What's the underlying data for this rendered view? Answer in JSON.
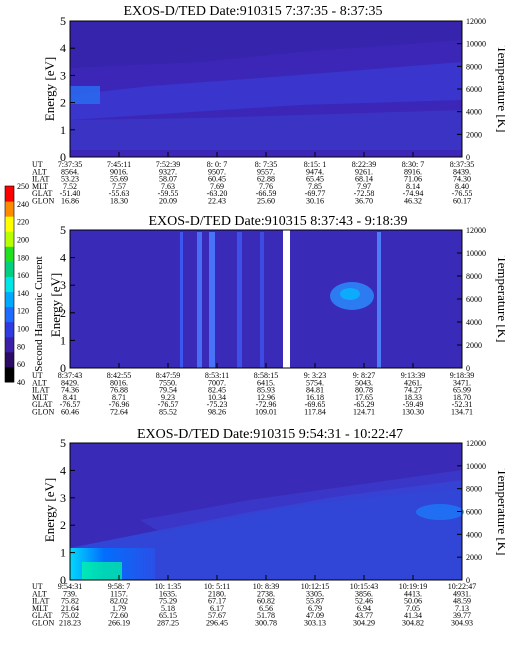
{
  "panels": [
    {
      "title": "EXOS-D/TED   Date:910315  7:37:35 - 8:37:35",
      "ylabel_left": "Energy [eV]",
      "ylabel_right": "Temperature [K]",
      "left_ticks": [
        "0",
        "1",
        "2",
        "3",
        "4",
        "5"
      ],
      "right_ticks": [
        "0",
        "2000",
        "4000",
        "6000",
        "8000",
        "10000",
        "12000"
      ],
      "row_labels": [
        "UT",
        "ALT",
        "ILAT",
        "MLT",
        "GLAT",
        "GLON"
      ],
      "columns": [
        [
          "7:37:35",
          "8564.",
          "53.23",
          "7.52",
          "-51.40",
          "16.86"
        ],
        [
          "7:45:11",
          "9016.",
          "55.69",
          "7.57",
          "-55.63",
          "18.30"
        ],
        [
          "7:52:39",
          "9327.",
          "58.07",
          "7.63",
          "-59.55",
          "20.09"
        ],
        [
          "8: 0: 7",
          "9507.",
          "60.45",
          "7.69",
          "-63.20",
          "22.43"
        ],
        [
          "8: 7:35",
          "9557.",
          "62.88",
          "7.76",
          "-66.59",
          "25.60"
        ],
        [
          "8:15: 1",
          "9474.",
          "65.45",
          "7.85",
          "-69.77",
          "30.16"
        ],
        [
          "8:22:39",
          "9261.",
          "68.14",
          "7.97",
          "-72.58",
          "36.70"
        ],
        [
          "8:30: 7",
          "8916.",
          "71.06",
          "8.14",
          "-74.94",
          "46.32"
        ],
        [
          "8:37:35",
          "8439.",
          "74.30",
          "8.40",
          "-76.55",
          "60.17"
        ]
      ]
    },
    {
      "title": "EXOS-D/TED   Date:910315  8:37:43 - 9:18:39",
      "ylabel_left": "Energy [eV]",
      "ylabel_right": "Temperature [K]",
      "left_ticks": [
        "0",
        "1",
        "2",
        "3",
        "4",
        "5"
      ],
      "right_ticks": [
        "0",
        "2000",
        "4000",
        "6000",
        "8000",
        "10000",
        "12000"
      ],
      "row_labels": [
        "UT",
        "ALT",
        "ILAT",
        "MLT",
        "GLAT",
        "GLON"
      ],
      "columns": [
        [
          "8:37:43",
          "8429.",
          "74.36",
          "8.41",
          "-76.57",
          "60.46"
        ],
        [
          "8:42:55",
          "8016.",
          "76.88",
          "8.71",
          "-76.96",
          "72.64"
        ],
        [
          "8:47:59",
          "7550.",
          "79.54",
          "9.23",
          "-76.57",
          "85.52"
        ],
        [
          "8:53:11",
          "7007.",
          "82.45",
          "10.34",
          "-75.23",
          "98.26"
        ],
        [
          "8:58:15",
          "6415.",
          "85.93",
          "12.96",
          "-72.96",
          "109.01"
        ],
        [
          "9: 3:23",
          "5754.",
          "84.81",
          "16.18",
          "-69.65",
          "117.84"
        ],
        [
          "9: 8:27",
          "5043.",
          "80.78",
          "17.65",
          "-65.29",
          "124.71"
        ],
        [
          "9:13:39",
          "4261.",
          "74.27",
          "18.33",
          "-59.49",
          "130.30"
        ],
        [
          "9:18:39",
          "3471.",
          "65.99",
          "18.70",
          "-52.31",
          "134.71"
        ]
      ]
    },
    {
      "title": "EXOS-D/TED   Date:910315  9:54:31 - 10:22:47",
      "ylabel_left": "Energy [eV]",
      "ylabel_right": "Temperature [K]",
      "left_ticks": [
        "0",
        "1",
        "2",
        "3",
        "4",
        "5"
      ],
      "right_ticks": [
        "0",
        "2000",
        "4000",
        "6000",
        "8000",
        "10000",
        "12000"
      ],
      "row_labels": [
        "UT",
        "ALT",
        "ILAT",
        "MLT",
        "GLAT",
        "GLON"
      ],
      "columns": [
        [
          "9:54:31",
          "739.",
          "75.82",
          "21.64",
          "75.02",
          "218.23"
        ],
        [
          "9:58: 7",
          "1157.",
          "82.02",
          "1.79",
          "72.60",
          "266.19"
        ],
        [
          "10: 1:35",
          "1635.",
          "75.29",
          "5.18",
          "65.15",
          "287.25"
        ],
        [
          "10: 5:11",
          "2180.",
          "67.17",
          "6.17",
          "57.67",
          "296.45"
        ],
        [
          "10: 8:39",
          "2738.",
          "60.82",
          "6.56",
          "51.78",
          "300.78"
        ],
        [
          "10:12:15",
          "3305.",
          "55.87",
          "6.79",
          "47.09",
          "303.13"
        ],
        [
          "10:15:43",
          "3856.",
          "52.46",
          "6.94",
          "43.77",
          "304.29"
        ],
        [
          "10:19:19",
          "4413.",
          "50.06",
          "7.05",
          "41.34",
          "304.82"
        ],
        [
          "10:22:47",
          "4931.",
          "48.59",
          "7.13",
          "39.77",
          "304.93"
        ]
      ]
    }
  ],
  "colorbar": {
    "label": "Second Harmonic Current",
    "ticks": [
      "40",
      "60",
      "80",
      "100",
      "120",
      "140",
      "160",
      "180",
      "200",
      "220",
      "240",
      "250"
    ],
    "colors": [
      "#000000",
      "#2b0b63",
      "#3c1fa8",
      "#2f3be0",
      "#1f6bff",
      "#00a8ff",
      "#00e5e5",
      "#00d080",
      "#20e020",
      "#b8ff00",
      "#ffff00",
      "#ff8c00",
      "#ff0000"
    ]
  },
  "chart_data": [
    {
      "type": "heatmap",
      "title": "EXOS-D/TED   Date:910315  7:37:35 - 8:37:35",
      "ylabel": "Energy [eV]",
      "ylim": [
        0,
        5
      ],
      "y2label": "Temperature [K]",
      "y2lim": [
        0,
        12000
      ],
      "x": [
        "7:37:35",
        "7:45:11",
        "7:52:39",
        "8: 0: 7",
        "8: 7:35",
        "8:15: 1",
        "8:22:39",
        "8:30: 7",
        "8:37:35"
      ]
    },
    {
      "type": "heatmap",
      "title": "EXOS-D/TED   Date:910315  8:37:43 - 9:18:39",
      "ylabel": "Energy [eV]",
      "ylim": [
        0,
        5
      ],
      "y2label": "Temperature [K]",
      "y2lim": [
        0,
        12000
      ],
      "x": [
        "8:37:43",
        "8:42:55",
        "8:47:59",
        "8:53:11",
        "8:58:15",
        "9: 3:23",
        "9: 8:27",
        "9:13:39",
        "9:18:39"
      ]
    },
    {
      "type": "heatmap",
      "title": "EXOS-D/TED   Date:910315  9:54:31 - 10:22:47",
      "ylabel": "Energy [eV]",
      "ylim": [
        0,
        5
      ],
      "y2label": "Temperature [K]",
      "y2lim": [
        0,
        12000
      ],
      "x": [
        "9:54:31",
        "9:58: 7",
        "10: 1:35",
        "10: 5:11",
        "10: 8:39",
        "10:12:15",
        "10:15:43",
        "10:19:19",
        "10:22:47"
      ]
    }
  ]
}
